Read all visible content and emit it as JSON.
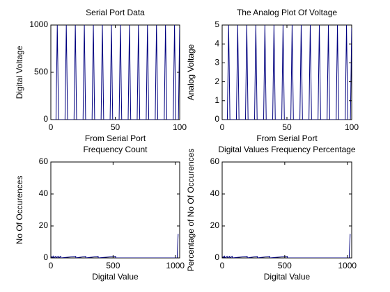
{
  "chart_data": [
    {
      "type": "line",
      "title": "Serial Port Data",
      "xlabel": "From Serial Port",
      "ylabel": "Digital Voltage",
      "color": "#00007f",
      "x": [
        0,
        4,
        5,
        6,
        11,
        12,
        13,
        18,
        19,
        20,
        25,
        26,
        27,
        32,
        33,
        34,
        39,
        40,
        41,
        46,
        47,
        48,
        53,
        54,
        55,
        60,
        61,
        62,
        67,
        68,
        69,
        74,
        75,
        76,
        81,
        82,
        83,
        88,
        89,
        90,
        95,
        96,
        97,
        99,
        100
      ],
      "values": [
        0,
        0,
        1000,
        0,
        0,
        1000,
        0,
        0,
        1000,
        0,
        0,
        1000,
        0,
        0,
        1000,
        0,
        0,
        1000,
        0,
        0,
        1000,
        0,
        0,
        1000,
        0,
        0,
        1000,
        0,
        0,
        1000,
        0,
        0,
        1000,
        0,
        0,
        1000,
        0,
        0,
        1000,
        0,
        0,
        1000,
        0,
        0,
        1000
      ],
      "xlim": [
        0,
        100
      ],
      "ylim": [
        0,
        1000
      ],
      "xticks": [
        0,
        50,
        100
      ],
      "yticks": [
        0,
        500,
        1000
      ]
    },
    {
      "type": "line",
      "title": "The Analog Plot Of Voltage",
      "xlabel": "From Serial Port",
      "ylabel": "Analog Voltage",
      "color": "#00007f",
      "x": [
        0,
        4,
        5,
        6,
        11,
        12,
        13,
        18,
        19,
        20,
        25,
        26,
        27,
        32,
        33,
        34,
        39,
        40,
        41,
        46,
        47,
        48,
        53,
        54,
        55,
        60,
        61,
        62,
        67,
        68,
        69,
        74,
        75,
        76,
        81,
        82,
        83,
        88,
        89,
        90,
        95,
        96,
        97,
        99,
        100
      ],
      "values": [
        0,
        0,
        5,
        0,
        0,
        5,
        0,
        0,
        5,
        0,
        0,
        5,
        0,
        0,
        5,
        0,
        0,
        5,
        0,
        0,
        5,
        0,
        0,
        5,
        0,
        0,
        5,
        0,
        0,
        5,
        0,
        0,
        5,
        0,
        0,
        5,
        0,
        0,
        5,
        0,
        0,
        5,
        0,
        0,
        5
      ],
      "xlim": [
        0,
        100
      ],
      "ylim": [
        0,
        5
      ],
      "xticks": [
        0,
        50,
        100
      ],
      "yticks": [
        0,
        1,
        2,
        3,
        4,
        5
      ]
    },
    {
      "type": "line",
      "title": "Frequency Count",
      "xlabel": "Digital Value",
      "ylabel": "No Of Occurences",
      "color": "#00007f",
      "x": [
        0,
        5,
        10,
        11,
        20,
        21,
        40,
        41,
        60,
        61,
        80,
        81,
        82,
        200,
        201,
        280,
        281,
        282,
        380,
        381,
        520,
        521,
        1015,
        1016,
        1023
      ],
      "values": [
        1,
        0,
        1,
        0,
        1,
        0,
        1,
        0,
        1,
        0,
        1,
        0,
        0,
        1,
        0,
        1,
        0,
        0,
        1,
        0,
        1,
        0,
        0,
        3,
        15
      ],
      "xlim": [
        0,
        1035
      ],
      "ylim": [
        0,
        60
      ],
      "xticks": [
        0,
        500,
        1000
      ],
      "yticks": [
        0,
        20,
        40,
        60
      ]
    },
    {
      "type": "line",
      "title": "Digital Values Frequency Percentage",
      "xlabel": "Digital Value",
      "ylabel": "Percentage of No Of Occurences",
      "color": "#00007f",
      "x": [
        0,
        5,
        10,
        11,
        20,
        21,
        40,
        41,
        60,
        61,
        80,
        81,
        82,
        200,
        201,
        280,
        281,
        282,
        380,
        381,
        520,
        521,
        1015,
        1016,
        1023
      ],
      "values": [
        1,
        0,
        1,
        0,
        1,
        0,
        1,
        0,
        1,
        0,
        1,
        0,
        0,
        1,
        0,
        1,
        0,
        0,
        1,
        0,
        1,
        0,
        0,
        3,
        15
      ],
      "xlim": [
        0,
        1035
      ],
      "ylim": [
        0,
        60
      ],
      "xticks": [
        0,
        500,
        1000
      ],
      "yticks": [
        0,
        20,
        40,
        60
      ]
    }
  ]
}
